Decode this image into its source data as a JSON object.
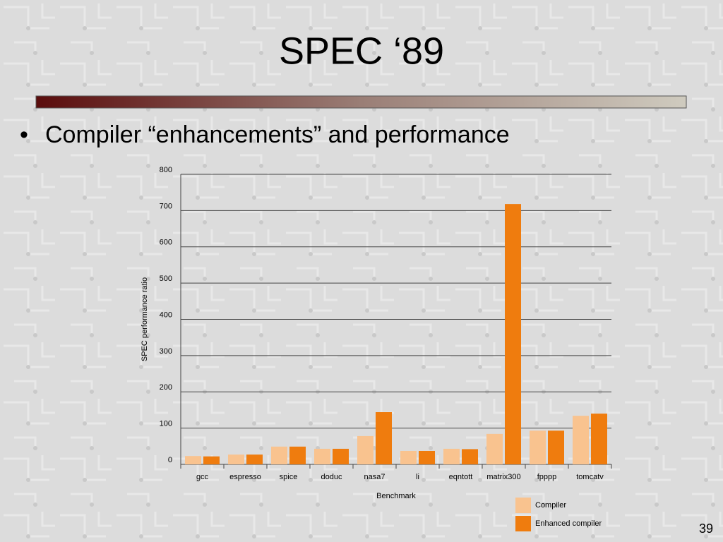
{
  "slide": {
    "title": "SPEC ‘89",
    "bullet": "Compiler “enhancements” and performance",
    "page_number": "39"
  },
  "chart_data": {
    "type": "bar",
    "categories": [
      "gcc",
      "espresso",
      "spice",
      "doduc",
      "nasa7",
      "li",
      "eqntott",
      "matrix300",
      "fpppp",
      "tomcatv"
    ],
    "series": [
      {
        "name": "Compiler",
        "color": "#f9c38f",
        "values": [
          23,
          27,
          49,
          43,
          78,
          37,
          43,
          84,
          93,
          134
        ]
      },
      {
        "name": "Enhanced compiler",
        "color": "#ef7c0e",
        "values": [
          22,
          27,
          49,
          43,
          144,
          37,
          42,
          718,
          93,
          140
        ]
      }
    ],
    "xlabel": "Benchmark",
    "ylabel": "SPEC performance ratio",
    "ylim": [
      0,
      800
    ],
    "yticks": [
      0,
      100,
      200,
      300,
      400,
      500,
      600,
      700,
      800
    ],
    "grid": true,
    "legend": "bottom-right"
  }
}
